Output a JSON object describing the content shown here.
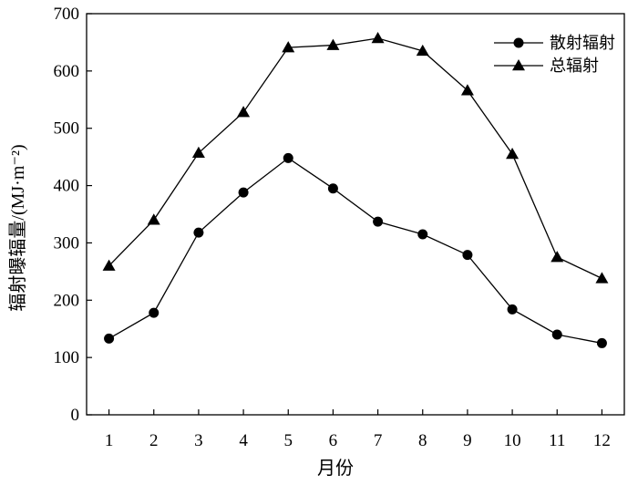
{
  "chart_data": {
    "type": "line",
    "title": "",
    "xlabel": "月份",
    "ylabel": "辐射曝辐量/(MJ·m⁻²)",
    "x": [
      1,
      2,
      3,
      4,
      5,
      6,
      7,
      8,
      9,
      10,
      11,
      12
    ],
    "xticks": [
      "1",
      "2",
      "3",
      "4",
      "5",
      "6",
      "7",
      "8",
      "9",
      "10",
      "11",
      "12"
    ],
    "xlim": [
      0.5,
      12.5
    ],
    "ylim": [
      0,
      700
    ],
    "yticks": [
      "0",
      "100",
      "200",
      "300",
      "400",
      "500",
      "600",
      "700"
    ],
    "grid": false,
    "legend_position": "top-right",
    "series": [
      {
        "name": "散射辐射",
        "marker": "circle",
        "color": "#000000",
        "values": [
          133,
          178,
          318,
          388,
          448,
          395,
          337,
          315,
          279,
          184,
          140,
          125
        ]
      },
      {
        "name": "总辐射",
        "marker": "triangle",
        "color": "#000000",
        "values": [
          260,
          340,
          457,
          528,
          641,
          645,
          657,
          635,
          566,
          455,
          275,
          238
        ]
      }
    ]
  }
}
